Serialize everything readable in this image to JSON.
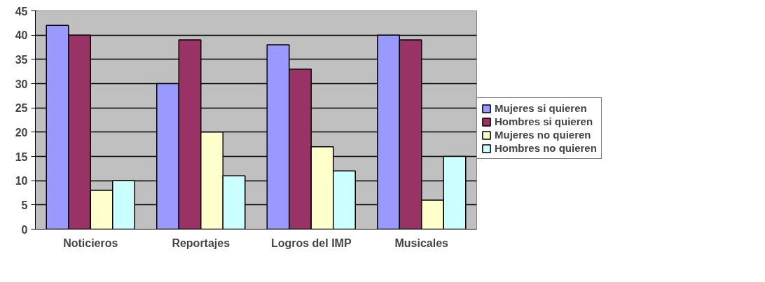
{
  "chart_data": {
    "type": "bar",
    "categories": [
      "Noticieros",
      "Reportajes",
      "Logros del IMP",
      "Musicales"
    ],
    "series": [
      {
        "name": "Mujeres si quieren",
        "color": "#9999ff",
        "values": [
          42,
          30,
          38,
          40
        ]
      },
      {
        "name": "Hombres si quieren",
        "color": "#993366",
        "values": [
          40,
          39,
          33,
          39
        ]
      },
      {
        "name": "Mujeres no quieren",
        "color": "#ffffcc",
        "values": [
          8,
          20,
          17,
          6
        ]
      },
      {
        "name": "Hombres no quieren",
        "color": "#ccffff",
        "values": [
          10,
          11,
          12,
          15
        ]
      }
    ],
    "ylim": [
      0,
      45
    ],
    "yticks": [
      0,
      5,
      10,
      15,
      20,
      25,
      30,
      35,
      40,
      45
    ],
    "grid": "y",
    "legend": "right"
  }
}
